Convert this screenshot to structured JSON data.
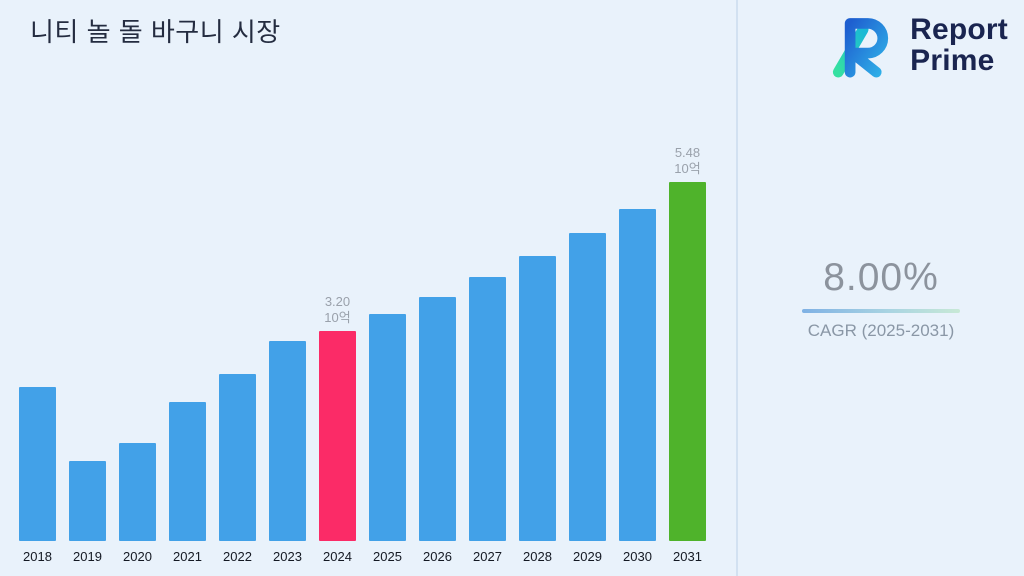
{
  "title": "니티 놀 돌 바구니 시장",
  "brand": {
    "line1": "Report",
    "line2": "Prime"
  },
  "cagr": {
    "value": "8.00%",
    "label": "CAGR (2025-2031)"
  },
  "colors": {
    "background": "#e9f2fb",
    "bar_default": "#42A1E8",
    "bar_2024_highlight": "#FB2B67",
    "bar_2031_highlight": "#4FB32B",
    "annotation_text": "#9aa1ab",
    "brand_navy": "#1a2550"
  },
  "chart_data": {
    "type": "bar",
    "title": "니티 놀 돌 바구니 시장",
    "xlabel": "",
    "ylabel": "",
    "unit": "10억",
    "categories": [
      "2018",
      "2019",
      "2020",
      "2021",
      "2022",
      "2023",
      "2024",
      "2025",
      "2026",
      "2027",
      "2028",
      "2029",
      "2030",
      "2031"
    ],
    "values": [
      2.35,
      1.22,
      1.5,
      2.12,
      2.55,
      3.05,
      3.2,
      3.46,
      3.73,
      4.03,
      4.35,
      4.7,
      5.07,
      5.48
    ],
    "ylim": [
      0,
      6
    ],
    "grid": false,
    "legend": false,
    "bar_color_default": "#42A1E8",
    "highlight": {
      "2024": "#FB2B67",
      "2031": "#4FB32B"
    },
    "annotations": [
      {
        "category": "2024",
        "value_label": "3.20",
        "unit_label": "10억"
      },
      {
        "category": "2031",
        "value_label": "5.48",
        "unit_label": "10억"
      }
    ]
  }
}
